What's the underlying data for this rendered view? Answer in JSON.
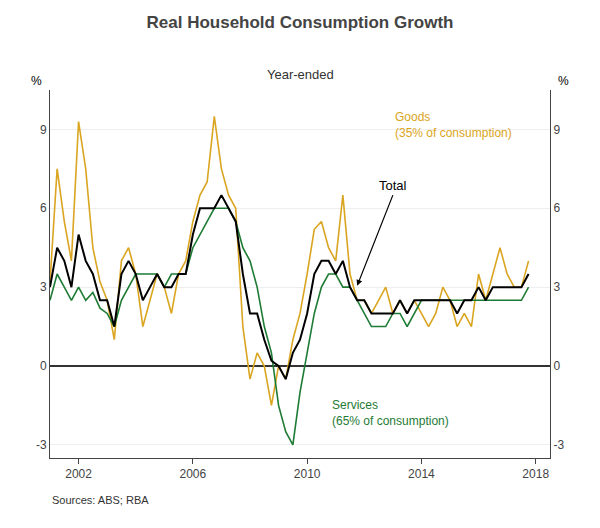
{
  "chart_data": {
    "type": "line",
    "title": "Real Household Consumption Growth",
    "subtitle": "Year-ended",
    "source": "Sources: ABS; RBA",
    "ylabel": "%",
    "y2label": "%",
    "annotations": [
      "Goods\n(35% of consumption)",
      "Services\n(65% of consumption)",
      "Total"
    ],
    "grid": true,
    "xlim": [
      2001.0,
      2018.5
    ],
    "xticks": [
      2002,
      2006,
      2010,
      2014,
      2018
    ],
    "ylim": [
      -3.5,
      10.5
    ],
    "yticks": [
      -3,
      0,
      3,
      6,
      9
    ],
    "y2lim": [
      -3.5,
      10.5
    ],
    "y2ticks": [
      -3,
      0,
      3,
      6,
      9
    ],
    "x": [
      2001.0,
      2001.25,
      2001.5,
      2001.75,
      2002.0,
      2002.25,
      2002.5,
      2002.75,
      2003.0,
      2003.25,
      2003.5,
      2003.75,
      2004.0,
      2004.25,
      2004.5,
      2004.75,
      2005.0,
      2005.25,
      2005.5,
      2005.75,
      2006.0,
      2006.25,
      2006.5,
      2006.75,
      2007.0,
      2007.25,
      2007.5,
      2007.75,
      2008.0,
      2008.25,
      2008.5,
      2008.75,
      2009.0,
      2009.25,
      2009.5,
      2009.75,
      2010.0,
      2010.25,
      2010.5,
      2010.75,
      2011.0,
      2011.25,
      2011.5,
      2011.75,
      2012.0,
      2012.25,
      2012.5,
      2012.75,
      2013.0,
      2013.25,
      2013.5,
      2013.75,
      2014.0,
      2014.25,
      2014.5,
      2014.75,
      2015.0,
      2015.25,
      2015.5,
      2015.75,
      2016.0,
      2016.25,
      2016.5,
      2016.75,
      2017.0,
      2017.25,
      2017.5,
      2017.75
    ],
    "series": [
      {
        "color": "#DAA520",
        "values": [
          3.2,
          7.5,
          5.5,
          4.0,
          9.3,
          7.5,
          4.5,
          3.2,
          2.5,
          1.0,
          4.0,
          4.5,
          3.5,
          1.5,
          2.5,
          3.5,
          3.0,
          2.0,
          3.5,
          4.0,
          5.5,
          6.5,
          7.0,
          9.5,
          7.5,
          6.5,
          6.0,
          1.5,
          -0.5,
          0.5,
          0.0,
          -1.5,
          0.0,
          -0.5,
          1.0,
          2.0,
          3.5,
          5.2,
          5.5,
          4.5,
          4.0,
          6.5,
          3.5,
          2.5,
          2.5,
          2.0,
          2.5,
          3.0,
          2.0,
          2.5,
          2.0,
          2.5,
          2.0,
          1.5,
          2.0,
          3.0,
          2.5,
          1.5,
          2.0,
          1.5,
          3.5,
          2.5,
          3.5,
          4.5,
          3.5,
          3.0,
          3.0,
          4.0
        ]
      },
      {
        "color": "#1E7B34",
        "values": [
          2.5,
          3.5,
          3.0,
          2.5,
          3.0,
          2.5,
          2.8,
          2.2,
          2.0,
          1.5,
          2.5,
          3.0,
          3.5,
          3.5,
          3.5,
          3.5,
          3.0,
          3.5,
          3.5,
          3.5,
          4.5,
          5.0,
          5.5,
          6.0,
          6.0,
          6.0,
          5.5,
          4.5,
          4.0,
          3.0,
          1.5,
          0.5,
          -1.5,
          -2.5,
          -3.0,
          -1.0,
          0.5,
          2.0,
          3.0,
          3.5,
          3.5,
          3.0,
          3.0,
          2.5,
          2.0,
          1.5,
          1.5,
          1.5,
          2.0,
          2.0,
          1.5,
          2.0,
          2.5,
          2.5,
          2.5,
          2.5,
          2.5,
          2.5,
          2.5,
          2.5,
          2.5,
          2.5,
          2.5,
          2.5,
          2.5,
          2.5,
          2.5,
          3.0
        ]
      },
      {
        "color": "#000000",
        "values": [
          3.0,
          4.5,
          4.0,
          3.0,
          5.0,
          4.0,
          3.5,
          2.5,
          2.5,
          1.5,
          3.5,
          4.0,
          3.5,
          2.5,
          3.0,
          3.5,
          3.0,
          3.0,
          3.5,
          3.5,
          5.0,
          6.0,
          6.0,
          6.0,
          6.5,
          6.0,
          5.5,
          3.5,
          2.0,
          2.0,
          1.0,
          0.2,
          0.0,
          -0.5,
          0.5,
          1.0,
          2.0,
          3.5,
          4.0,
          4.0,
          3.5,
          4.0,
          3.0,
          2.5,
          2.5,
          2.0,
          2.0,
          2.0,
          2.0,
          2.5,
          2.0,
          2.5,
          2.5,
          2.5,
          2.5,
          2.5,
          2.5,
          2.0,
          2.5,
          2.5,
          3.0,
          2.5,
          3.0,
          3.0,
          3.0,
          3.0,
          3.0,
          3.5
        ]
      }
    ]
  }
}
